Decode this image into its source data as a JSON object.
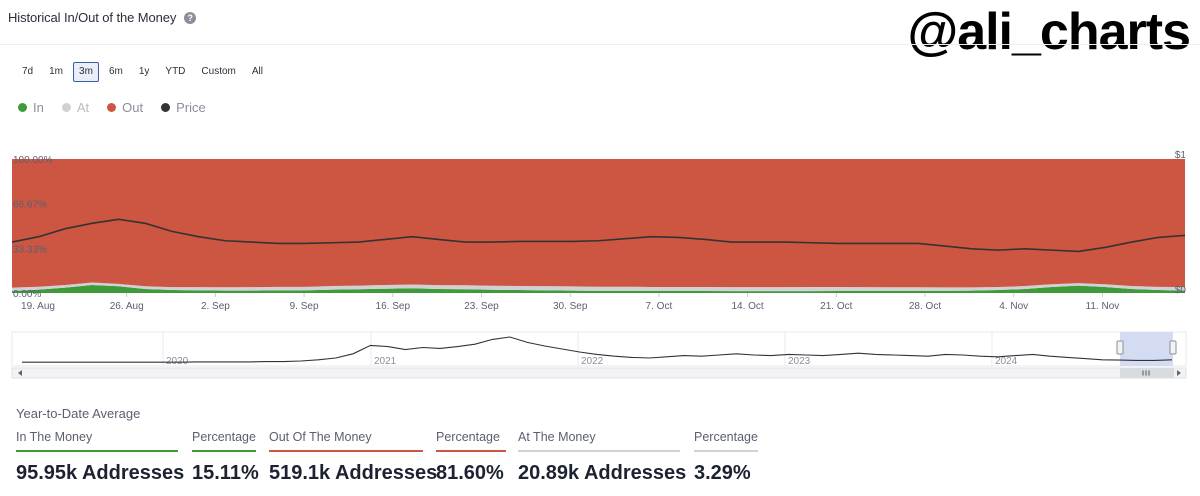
{
  "header": {
    "title": "Historical In/Out of the Money",
    "help": "?",
    "watermark": "@ali_charts"
  },
  "range_buttons": [
    {
      "label": "7d",
      "active": false
    },
    {
      "label": "1m",
      "active": false
    },
    {
      "label": "3m",
      "active": true
    },
    {
      "label": "6m",
      "active": false
    },
    {
      "label": "1y",
      "active": false
    },
    {
      "label": "YTD",
      "active": false
    },
    {
      "label": "Custom",
      "active": false
    },
    {
      "label": "All",
      "active": false
    }
  ],
  "legend": [
    {
      "label": "In",
      "color": "#3f9b3a",
      "text_color": "#8a8f99"
    },
    {
      "label": "At",
      "color": "#cfd1d4",
      "text_color": "#b8bcc3"
    },
    {
      "label": "Out",
      "color": "#cc5641",
      "text_color": "#8a8f99"
    },
    {
      "label": "Price",
      "color": "#333333",
      "text_color": "#8a8f99"
    }
  ],
  "chart_data": [
    {
      "type": "area",
      "stacked": true,
      "y_ticks": [
        "100.00%",
        "66.67%",
        "33.33%",
        "0.00%"
      ],
      "y_right_ticks": [
        "$1",
        "$0"
      ],
      "x_ticks": [
        "19. Aug",
        "26. Aug",
        "2. Sep",
        "9. Sep",
        "16. Sep",
        "23. Sep",
        "30. Sep",
        "7. Oct",
        "14. Oct",
        "21. Oct",
        "28. Oct",
        "4. Nov",
        "11. Nov"
      ],
      "ylim": [
        0,
        100
      ],
      "grid": false,
      "series": [
        {
          "name": "In",
          "color": "#3f9b3a",
          "values": [
            1.5,
            2.5,
            4.0,
            6.0,
            5.0,
            3.0,
            2.2,
            2.0,
            1.8,
            1.8,
            2.0,
            2.0,
            2.5,
            2.8,
            3.2,
            3.5,
            3.0,
            2.8,
            2.4,
            2.2,
            2.0,
            1.8,
            1.6,
            1.6,
            1.5,
            1.5,
            1.5,
            1.4,
            1.4,
            1.4,
            1.4,
            1.5,
            1.5,
            1.5,
            1.6,
            1.6,
            1.8,
            2.2,
            3.0,
            4.5,
            5.5,
            4.5,
            3.0,
            2.2,
            1.8
          ]
        },
        {
          "name": "At",
          "color": "#cfd1d4",
          "values": [
            2.5,
            2.2,
            2.0,
            1.8,
            1.8,
            2.0,
            2.2,
            2.4,
            2.5,
            2.6,
            2.6,
            2.6,
            2.7,
            2.7,
            2.8,
            2.8,
            2.9,
            3.0,
            3.0,
            3.0,
            3.1,
            3.1,
            3.1,
            3.1,
            3.0,
            3.0,
            3.0,
            3.0,
            3.0,
            3.0,
            3.1,
            3.0,
            2.9,
            2.8,
            2.7,
            2.6,
            2.4,
            2.3,
            2.2,
            2.0,
            1.9,
            2.0,
            2.2,
            2.4,
            2.6
          ]
        },
        {
          "name": "Out",
          "color": "#cc5641",
          "values": [
            96.0,
            95.3,
            94.0,
            92.2,
            93.2,
            95.0,
            95.6,
            95.6,
            95.7,
            95.6,
            95.4,
            95.4,
            94.8,
            94.5,
            94.0,
            93.7,
            94.1,
            94.2,
            94.6,
            94.8,
            94.9,
            95.1,
            95.3,
            95.3,
            95.5,
            95.5,
            95.5,
            95.6,
            95.6,
            95.6,
            95.5,
            95.5,
            95.6,
            95.7,
            95.7,
            95.8,
            95.8,
            95.5,
            94.8,
            93.5,
            92.6,
            93.5,
            94.8,
            95.4,
            95.6
          ]
        },
        {
          "name": "Price",
          "color": "#333333",
          "axis": "right",
          "values": [
            38.0,
            42.0,
            48.0,
            52.0,
            55.0,
            52.0,
            46.0,
            42.0,
            39.0,
            38.0,
            37.0,
            37.0,
            37.5,
            38.0,
            40.0,
            42.0,
            40.0,
            38.0,
            38.0,
            38.5,
            38.5,
            38.5,
            39.0,
            40.5,
            42.0,
            41.5,
            40.0,
            38.0,
            38.0,
            38.0,
            37.5,
            37.0,
            37.0,
            37.0,
            37.0,
            35.0,
            33.0,
            32.0,
            33.0,
            32.0,
            31.0,
            34.0,
            38.0,
            41.5,
            43.0
          ]
        }
      ]
    },
    {
      "type": "line",
      "role": "navigator",
      "x_ticks": [
        "2020",
        "2021",
        "2022",
        "2023",
        "2024"
      ],
      "series": [
        {
          "name": "Price",
          "color": "#333333",
          "values": [
            6,
            6,
            6,
            6,
            6,
            6,
            6,
            6,
            6,
            6,
            7,
            7,
            7,
            7,
            8,
            8,
            10,
            14,
            20,
            34,
            62,
            58,
            48,
            55,
            52,
            58,
            66,
            82,
            90,
            72,
            60,
            50,
            40,
            32,
            26,
            22,
            20,
            24,
            28,
            26,
            30,
            34,
            30,
            28,
            32,
            30,
            28,
            32,
            36,
            32,
            30,
            28,
            26,
            32,
            30,
            26,
            24,
            28,
            32,
            26,
            22,
            18,
            14,
            13,
            12,
            12,
            14
          ]
        }
      ]
    }
  ],
  "stats": {
    "heading": "Year-to-Date Average",
    "columns": [
      {
        "label": "In The Money",
        "value": "95.95k Addresses",
        "color": "#3f9b3a"
      },
      {
        "label": "Percentage",
        "value": "15.11%",
        "color": "#3f9b3a"
      },
      {
        "label": "Out Of The Money",
        "value": "519.1k Addresses",
        "color": "#cc5641"
      },
      {
        "label": "Percentage",
        "value": "81.60%",
        "color": "#cc5641"
      },
      {
        "label": "At The Money",
        "value": "20.89k Addresses",
        "color": "#cfd1d4"
      },
      {
        "label": "Percentage",
        "value": "3.29%",
        "color": "#cfd1d4"
      }
    ]
  }
}
